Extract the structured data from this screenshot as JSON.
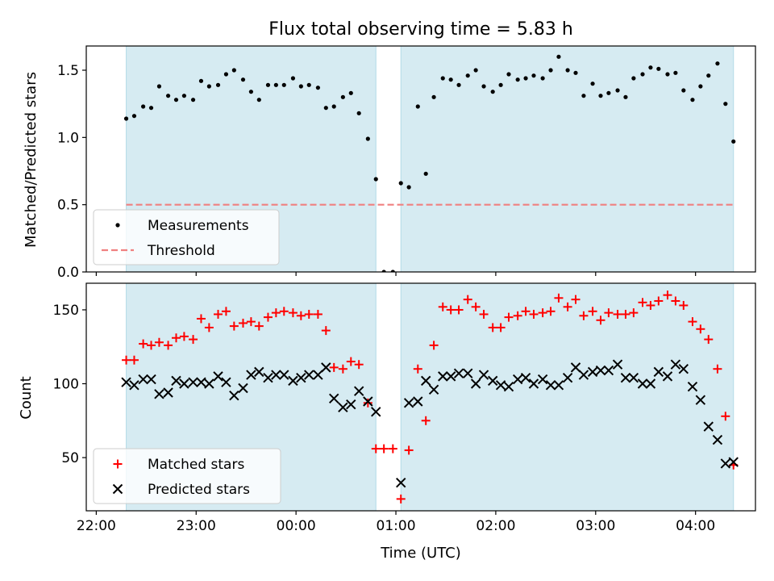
{
  "figure_title": "Flux total observing time = 5.83 h",
  "colors": {
    "shade": "#add8e6",
    "measurement": "#000000",
    "threshold": "#f08080",
    "matched": "#ff0000",
    "predicted": "#000000"
  },
  "chart_data": [
    {
      "type": "scatter",
      "panel": "top",
      "xlabel": "",
      "ylabel": "Matched/Predicted stars",
      "xlim": [
        -0.1,
        6.6
      ],
      "ylim": [
        0,
        1.68
      ],
      "yticks": [
        0.0,
        0.5,
        1.0,
        1.5
      ],
      "ytick_labels": [
        "0.0",
        "0.5",
        "1.0",
        "1.5"
      ],
      "shaded_intervals": [
        [
          0.3,
          2.8
        ],
        [
          3.05,
          6.38
        ]
      ],
      "threshold": {
        "name": "Threshold",
        "value": 0.5
      },
      "legend": {
        "placement": "lower-left",
        "entries": [
          "Measurements",
          "Threshold"
        ]
      },
      "series": [
        {
          "name": "Measurements",
          "marker": "dot",
          "x": [
            0.3,
            0.38,
            0.47,
            0.55,
            0.63,
            0.72,
            0.8,
            0.88,
            0.97,
            1.05,
            1.13,
            1.22,
            1.3,
            1.38,
            1.47,
            1.55,
            1.63,
            1.72,
            1.8,
            1.88,
            1.97,
            2.05,
            2.13,
            2.22,
            2.3,
            2.38,
            2.47,
            2.55,
            2.63,
            2.72,
            2.8,
            2.88,
            2.97,
            3.05,
            3.13,
            3.22,
            3.3,
            3.38,
            3.47,
            3.55,
            3.63,
            3.72,
            3.8,
            3.88,
            3.97,
            4.05,
            4.13,
            4.22,
            4.3,
            4.38,
            4.47,
            4.55,
            4.63,
            4.72,
            4.8,
            4.88,
            4.97,
            5.05,
            5.13,
            5.22,
            5.3,
            5.38,
            5.47,
            5.55,
            5.63,
            5.72,
            5.8,
            5.88,
            5.97,
            6.05,
            6.13,
            6.22,
            6.3,
            6.38
          ],
          "y": [
            1.14,
            1.16,
            1.23,
            1.22,
            1.38,
            1.31,
            1.28,
            1.31,
            1.28,
            1.42,
            1.38,
            1.39,
            1.47,
            1.5,
            1.43,
            1.34,
            1.28,
            1.39,
            1.39,
            1.39,
            1.44,
            1.38,
            1.39,
            1.37,
            1.22,
            1.23,
            1.3,
            1.33,
            1.18,
            0.99,
            0.69,
            0.0,
            0.0,
            0.66,
            0.63,
            1.23,
            0.73,
            1.3,
            1.44,
            1.43,
            1.39,
            1.46,
            1.5,
            1.38,
            1.34,
            1.39,
            1.47,
            1.43,
            1.44,
            1.46,
            1.44,
            1.5,
            1.6,
            1.5,
            1.48,
            1.31,
            1.4,
            1.31,
            1.33,
            1.35,
            1.3,
            1.44,
            1.47,
            1.52,
            1.51,
            1.47,
            1.48,
            1.35,
            1.28,
            1.38,
            1.46,
            1.55,
            1.25,
            0.97
          ]
        }
      ]
    },
    {
      "type": "scatter",
      "panel": "bottom",
      "xlabel": "Time (UTC)",
      "ylabel": "Count",
      "xlim": [
        -0.1,
        6.6
      ],
      "ylim": [
        14,
        168
      ],
      "xticks": [
        0,
        1,
        2,
        3,
        4,
        5,
        6
      ],
      "xtick_labels": [
        "22:00",
        "23:00",
        "00:00",
        "01:00",
        "02:00",
        "03:00",
        "04:00"
      ],
      "yticks": [
        50,
        100,
        150
      ],
      "ytick_labels": [
        "50",
        "100",
        "150"
      ],
      "shaded_intervals": [
        [
          0.3,
          2.8
        ],
        [
          3.05,
          6.38
        ]
      ],
      "legend": {
        "placement": "lower-left",
        "entries": [
          "Matched stars",
          "Predicted stars"
        ]
      },
      "series": [
        {
          "name": "Matched stars",
          "marker": "plus",
          "x": [
            0.3,
            0.38,
            0.47,
            0.55,
            0.63,
            0.72,
            0.8,
            0.88,
            0.97,
            1.05,
            1.13,
            1.22,
            1.3,
            1.38,
            1.47,
            1.55,
            1.63,
            1.72,
            1.8,
            1.88,
            1.97,
            2.05,
            2.13,
            2.22,
            2.3,
            2.38,
            2.47,
            2.55,
            2.63,
            2.72,
            2.8,
            2.88,
            2.97,
            3.05,
            3.13,
            3.22,
            3.3,
            3.38,
            3.47,
            3.55,
            3.63,
            3.72,
            3.8,
            3.88,
            3.97,
            4.05,
            4.13,
            4.22,
            4.3,
            4.38,
            4.47,
            4.55,
            4.63,
            4.72,
            4.8,
            4.88,
            4.97,
            5.05,
            5.13,
            5.22,
            5.3,
            5.38,
            5.47,
            5.55,
            5.63,
            5.72,
            5.8,
            5.88,
            5.97,
            6.05,
            6.13,
            6.22,
            6.3,
            6.38
          ],
          "y": [
            116,
            116,
            127,
            126,
            128,
            126,
            131,
            132,
            130,
            144,
            138,
            147,
            149,
            139,
            141,
            142,
            139,
            145,
            148,
            149,
            148,
            146,
            147,
            147,
            136,
            111,
            110,
            115,
            113,
            87,
            56,
            56,
            56,
            22,
            55,
            110,
            75,
            126,
            152,
            150,
            150,
            157,
            152,
            147,
            138,
            138,
            145,
            146,
            149,
            147,
            148,
            149,
            158,
            152,
            157,
            146,
            149,
            143,
            148,
            147,
            147,
            148,
            155,
            153,
            156,
            160,
            156,
            153,
            142,
            137,
            130,
            110,
            78,
            45
          ]
        },
        {
          "name": "Predicted stars",
          "marker": "x",
          "x": [
            0.3,
            0.38,
            0.47,
            0.55,
            0.63,
            0.72,
            0.8,
            0.88,
            0.97,
            1.05,
            1.13,
            1.22,
            1.3,
            1.38,
            1.47,
            1.55,
            1.63,
            1.72,
            1.8,
            1.88,
            1.97,
            2.05,
            2.13,
            2.22,
            2.3,
            2.38,
            2.47,
            2.55,
            2.63,
            2.72,
            2.8,
            3.05,
            3.13,
            3.22,
            3.3,
            3.38,
            3.47,
            3.55,
            3.63,
            3.72,
            3.8,
            3.88,
            3.97,
            4.05,
            4.13,
            4.22,
            4.3,
            4.38,
            4.47,
            4.55,
            4.63,
            4.72,
            4.8,
            4.88,
            4.97,
            5.05,
            5.13,
            5.22,
            5.3,
            5.38,
            5.47,
            5.55,
            5.63,
            5.72,
            5.8,
            5.88,
            5.97,
            6.05,
            6.13,
            6.22,
            6.3,
            6.38
          ],
          "y": [
            101,
            99,
            103,
            103,
            93,
            94,
            102,
            100,
            101,
            101,
            100,
            105,
            101,
            92,
            97,
            106,
            108,
            104,
            106,
            106,
            102,
            104,
            106,
            106,
            111,
            90,
            84,
            86,
            95,
            88,
            81,
            33,
            87,
            88,
            102,
            96,
            105,
            105,
            107,
            107,
            100,
            106,
            102,
            99,
            98,
            103,
            104,
            100,
            103,
            99,
            99,
            104,
            111,
            106,
            108,
            109,
            109,
            113,
            104,
            104,
            100,
            100,
            108,
            105,
            113,
            110,
            98,
            89,
            71,
            62,
            46,
            47
          ]
        }
      ]
    }
  ]
}
